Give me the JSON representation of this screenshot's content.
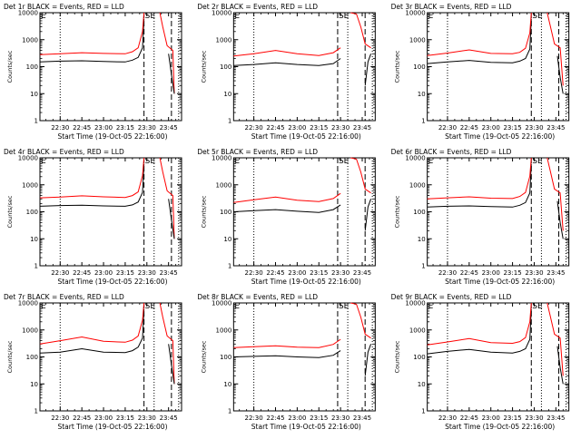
{
  "figure": {
    "xlabel": "Start Time (19-Oct-05 22:16:00)",
    "ylabel": "Counts/sec",
    "x_ticks": [
      "22:30",
      "22:45",
      "23:00",
      "23:15",
      "23:30",
      "23:45"
    ],
    "y_ticks": [
      "1",
      "10",
      "100",
      "1000",
      "10000"
    ],
    "colors": {
      "events": "#000000",
      "lld": "#ff0000",
      "markers": "#000000"
    },
    "flags": [
      "E",
      "SE"
    ]
  },
  "chart_data": [
    {
      "type": "line",
      "title": "Det 1r BLACK = Events, RED = LLD",
      "xlabel": "Start Time (19-Oct-05 22:16:00)",
      "ylabel": "Counts/sec",
      "x_ticks": [
        "22:30",
        "22:45",
        "23:00",
        "23:15",
        "23:30",
        "23:45"
      ],
      "yscale": "log",
      "ylim": [
        1,
        10000
      ],
      "xlim": [
        "22:16",
        "23:54"
      ],
      "series": [
        {
          "x": [
            "22:16",
            "22:30",
            "22:45",
            "23:00",
            "23:15",
            "23:20",
            "23:24",
            "23:27",
            "23:28"
          ],
          "values": [
            150,
            160,
            165,
            155,
            150,
            175,
            220,
            500,
            6000
          ]
        },
        {
          "x": [
            "22:16",
            "22:30",
            "22:45",
            "23:00",
            "23:15",
            "23:20",
            "23:24",
            "23:27",
            "23:28"
          ],
          "values": [
            280,
            300,
            330,
            310,
            300,
            360,
            500,
            2000,
            10000
          ]
        },
        {
          "x": [
            "23:39",
            "23:41",
            "23:44",
            "23:48",
            "23:49"
          ],
          "values": [
            10000,
            3000,
            600,
            400,
            10
          ]
        },
        {
          "x": [
            "23:45",
            "23:47",
            "23:49"
          ],
          "values": [
            300,
            50,
            10
          ]
        }
      ],
      "vlines_dotted": [
        "22:30",
        "23:35",
        "23:52"
      ],
      "vlines_dashed": [
        "23:28",
        "23:47"
      ],
      "annotations": [
        "E",
        "SE"
      ]
    },
    {
      "type": "line",
      "title": "Det 2r BLACK = Events, RED = LLD",
      "xlabel": "Start Time (19-Oct-05 22:16:00)",
      "ylabel": "Counts/sec",
      "x_ticks": [
        "22:30",
        "22:45",
        "23:00",
        "23:15",
        "23:30",
        "23:45"
      ],
      "yscale": "log",
      "ylim": [
        1,
        10000
      ],
      "xlim": [
        "22:16",
        "23:54"
      ],
      "series": [
        {
          "x": [
            "22:16",
            "22:30",
            "22:45",
            "23:00",
            "23:15",
            "23:25",
            "23:30"
          ],
          "values": [
            110,
            120,
            140,
            120,
            110,
            130,
            200
          ]
        },
        {
          "x": [
            "22:16",
            "22:30",
            "22:45",
            "23:00",
            "23:15",
            "23:25",
            "23:30"
          ],
          "values": [
            250,
            300,
            400,
            300,
            260,
            330,
            500
          ]
        },
        {
          "x": [
            "23:37",
            "23:41",
            "23:44",
            "23:47",
            "23:51"
          ],
          "values": [
            10000,
            9000,
            3000,
            700,
            500
          ]
        },
        {
          "x": [
            "23:47",
            "23:49",
            "23:51"
          ],
          "values": [
            20,
            150,
            300
          ]
        }
      ],
      "vlines_dotted": [
        "22:30",
        "23:35",
        "23:52"
      ],
      "vlines_dashed": [
        "23:28",
        "23:47"
      ],
      "annotations": [
        "E",
        "SE"
      ]
    },
    {
      "type": "line",
      "title": "Det 3r BLACK = Events, RED = LLD",
      "xlabel": "Start Time (19-Oct-05 22:16:00)",
      "ylabel": "Counts/sec",
      "x_ticks": [
        "22:30",
        "22:45",
        "23:00",
        "23:15",
        "23:30",
        "23:45"
      ],
      "yscale": "log",
      "ylim": [
        1,
        10000
      ],
      "xlim": [
        "22:16",
        "23:54"
      ],
      "series": [
        {
          "x": [
            "22:16",
            "22:30",
            "22:45",
            "23:00",
            "23:15",
            "23:20",
            "23:24",
            "23:27",
            "23:28"
          ],
          "values": [
            130,
            150,
            170,
            145,
            140,
            160,
            200,
            450,
            6000
          ]
        },
        {
          "x": [
            "22:16",
            "22:30",
            "22:45",
            "23:00",
            "23:15",
            "23:20",
            "23:24",
            "23:27",
            "23:28"
          ],
          "values": [
            260,
            320,
            420,
            310,
            300,
            340,
            480,
            1800,
            10000
          ]
        },
        {
          "x": [
            "23:39",
            "23:41",
            "23:44",
            "23:48",
            "23:50"
          ],
          "values": [
            10000,
            3500,
            700,
            500,
            20
          ]
        },
        {
          "x": [
            "23:46",
            "23:48",
            "23:50"
          ],
          "values": [
            250,
            40,
            10
          ]
        }
      ],
      "vlines_dotted": [
        "22:30",
        "23:35",
        "23:52"
      ],
      "vlines_dashed": [
        "23:28",
        "23:47"
      ],
      "annotations": [
        "E",
        "SE"
      ]
    },
    {
      "type": "line",
      "title": "Det 4r BLACK = Events, RED = LLD",
      "xlabel": "Start Time (19-Oct-05 22:16:00)",
      "ylabel": "Counts/sec",
      "x_ticks": [
        "22:30",
        "22:45",
        "23:00",
        "23:15",
        "23:30",
        "23:45"
      ],
      "yscale": "log",
      "ylim": [
        1,
        10000
      ],
      "xlim": [
        "22:16",
        "23:54"
      ],
      "series": [
        {
          "x": [
            "22:16",
            "22:30",
            "22:45",
            "23:00",
            "23:15",
            "23:20",
            "23:24",
            "23:27",
            "23:28"
          ],
          "values": [
            160,
            170,
            175,
            165,
            160,
            180,
            230,
            520,
            6000
          ]
        },
        {
          "x": [
            "22:16",
            "22:30",
            "22:45",
            "23:00",
            "23:15",
            "23:20",
            "23:24",
            "23:27",
            "23:28"
          ],
          "values": [
            330,
            350,
            390,
            360,
            340,
            400,
            550,
            2200,
            10000
          ]
        },
        {
          "x": [
            "23:39",
            "23:41",
            "23:44",
            "23:48",
            "23:49"
          ],
          "values": [
            10000,
            3000,
            600,
            400,
            10
          ]
        },
        {
          "x": [
            "23:45",
            "23:47",
            "23:49"
          ],
          "values": [
            300,
            50,
            10
          ]
        }
      ],
      "vlines_dotted": [
        "22:30",
        "23:35",
        "23:52"
      ],
      "vlines_dashed": [
        "23:28",
        "23:47"
      ],
      "annotations": [
        "E",
        "SE"
      ]
    },
    {
      "type": "line",
      "title": "Det 5r BLACK = Events, RED = LLD",
      "xlabel": "Start Time (19-Oct-05 22:16:00)",
      "ylabel": "Counts/sec",
      "x_ticks": [
        "22:30",
        "22:45",
        "23:00",
        "23:15",
        "23:30",
        "23:45"
      ],
      "yscale": "log",
      "ylim": [
        1,
        10000
      ],
      "xlim": [
        "22:16",
        "23:54"
      ],
      "series": [
        {
          "x": [
            "22:16",
            "22:30",
            "22:45",
            "23:00",
            "23:15",
            "23:25",
            "23:30"
          ],
          "values": [
            100,
            110,
            120,
            105,
            95,
            120,
            180
          ]
        },
        {
          "x": [
            "22:16",
            "22:30",
            "22:45",
            "23:00",
            "23:15",
            "23:25",
            "23:30"
          ],
          "values": [
            220,
            280,
            350,
            270,
            240,
            310,
            480
          ]
        },
        {
          "x": [
            "23:37",
            "23:41",
            "23:44",
            "23:47",
            "23:51"
          ],
          "values": [
            10000,
            9000,
            3000,
            700,
            500
          ]
        },
        {
          "x": [
            "23:47",
            "23:49",
            "23:51"
          ],
          "values": [
            20,
            150,
            300
          ]
        }
      ],
      "vlines_dotted": [
        "22:30",
        "23:35",
        "23:52"
      ],
      "vlines_dashed": [
        "23:28",
        "23:47"
      ],
      "annotations": [
        "E",
        "SE"
      ]
    },
    {
      "type": "line",
      "title": "Det 6r BLACK = Events, RED = LLD",
      "xlabel": "Start Time (19-Oct-05 22:16:00)",
      "ylabel": "Counts/sec",
      "x_ticks": [
        "22:30",
        "22:45",
        "23:00",
        "23:15",
        "23:30",
        "23:45"
      ],
      "yscale": "log",
      "ylim": [
        1,
        10000
      ],
      "xlim": [
        "22:16",
        "23:54"
      ],
      "series": [
        {
          "x": [
            "22:16",
            "22:30",
            "22:45",
            "23:00",
            "23:15",
            "23:20",
            "23:24",
            "23:27",
            "23:28"
          ],
          "values": [
            150,
            160,
            165,
            155,
            150,
            175,
            220,
            500,
            6000
          ]
        },
        {
          "x": [
            "22:16",
            "22:30",
            "22:45",
            "23:00",
            "23:15",
            "23:20",
            "23:24",
            "23:27",
            "23:28"
          ],
          "values": [
            300,
            330,
            360,
            320,
            310,
            370,
            520,
            2100,
            10000
          ]
        },
        {
          "x": [
            "23:39",
            "23:41",
            "23:44",
            "23:48",
            "23:50"
          ],
          "values": [
            10000,
            3500,
            700,
            500,
            20
          ]
        },
        {
          "x": [
            "23:46",
            "23:48",
            "23:50"
          ],
          "values": [
            250,
            40,
            10
          ]
        }
      ],
      "vlines_dotted": [
        "22:30",
        "23:35",
        "23:52"
      ],
      "vlines_dashed": [
        "23:28",
        "23:47"
      ],
      "annotations": [
        "E",
        "SE"
      ]
    },
    {
      "type": "line",
      "title": "Det 7r BLACK = Events, RED = LLD",
      "xlabel": "Start Time (19-Oct-05 22:16:00)",
      "ylabel": "Counts/sec",
      "x_ticks": [
        "22:30",
        "22:45",
        "23:00",
        "23:15",
        "23:30",
        "23:45"
      ],
      "yscale": "log",
      "ylim": [
        1,
        10000
      ],
      "xlim": [
        "22:16",
        "23:54"
      ],
      "series": [
        {
          "x": [
            "22:16",
            "22:30",
            "22:45",
            "23:00",
            "23:15",
            "23:20",
            "23:24",
            "23:27",
            "23:28"
          ],
          "values": [
            140,
            150,
            200,
            150,
            145,
            170,
            230,
            500,
            6000
          ]
        },
        {
          "x": [
            "22:16",
            "22:30",
            "22:45",
            "23:00",
            "23:15",
            "23:20",
            "23:24",
            "23:27",
            "23:28"
          ],
          "values": [
            300,
            400,
            550,
            380,
            350,
            420,
            600,
            2300,
            10000
          ]
        },
        {
          "x": [
            "23:39",
            "23:41",
            "23:44",
            "23:48",
            "23:49"
          ],
          "values": [
            10000,
            3000,
            600,
            400,
            10
          ]
        },
        {
          "x": [
            "23:45",
            "23:47",
            "23:49"
          ],
          "values": [
            300,
            50,
            10
          ]
        }
      ],
      "vlines_dotted": [
        "22:30",
        "23:35",
        "23:52"
      ],
      "vlines_dashed": [
        "23:28",
        "23:47"
      ],
      "annotations": [
        "E",
        "SE"
      ]
    },
    {
      "type": "line",
      "title": "Det 8r BLACK = Events, RED = LLD",
      "xlabel": "Start Time (19-Oct-05 22:16:00)",
      "ylabel": "Counts/sec",
      "x_ticks": [
        "22:30",
        "22:45",
        "23:00",
        "23:15",
        "23:30",
        "23:45"
      ],
      "yscale": "log",
      "ylim": [
        1,
        10000
      ],
      "xlim": [
        "22:16",
        "23:54"
      ],
      "series": [
        {
          "x": [
            "22:16",
            "22:30",
            "22:45",
            "23:00",
            "23:15",
            "23:25",
            "23:30"
          ],
          "values": [
            100,
            105,
            110,
            100,
            95,
            115,
            170
          ]
        },
        {
          "x": [
            "22:16",
            "22:30",
            "22:45",
            "23:00",
            "23:15",
            "23:25",
            "23:30"
          ],
          "values": [
            220,
            240,
            260,
            230,
            220,
            290,
            450
          ]
        },
        {
          "x": [
            "23:37",
            "23:41",
            "23:44",
            "23:47",
            "23:51"
          ],
          "values": [
            10000,
            9000,
            3000,
            700,
            500
          ]
        },
        {
          "x": [
            "23:47",
            "23:49",
            "23:51"
          ],
          "values": [
            20,
            150,
            300
          ]
        }
      ],
      "vlines_dotted": [
        "22:30",
        "23:35",
        "23:52"
      ],
      "vlines_dashed": [
        "23:28",
        "23:47"
      ],
      "annotations": [
        "E",
        "SE"
      ]
    },
    {
      "type": "line",
      "title": "Det 9r BLACK = Events, RED = LLD",
      "xlabel": "Start Time (19-Oct-05 22:16:00)",
      "ylabel": "Counts/sec",
      "x_ticks": [
        "22:30",
        "22:45",
        "23:00",
        "23:15",
        "23:30",
        "23:45"
      ],
      "yscale": "log",
      "ylim": [
        1,
        10000
      ],
      "xlim": [
        "22:16",
        "23:54"
      ],
      "series": [
        {
          "x": [
            "22:16",
            "22:30",
            "22:45",
            "23:00",
            "23:15",
            "23:20",
            "23:24",
            "23:27",
            "23:28"
          ],
          "values": [
            130,
            160,
            190,
            150,
            140,
            160,
            200,
            450,
            6000
          ]
        },
        {
          "x": [
            "22:16",
            "22:30",
            "22:45",
            "23:00",
            "23:15",
            "23:20",
            "23:24",
            "23:27",
            "23:28"
          ],
          "values": [
            280,
            360,
            480,
            340,
            320,
            370,
            520,
            2000,
            10000
          ]
        },
        {
          "x": [
            "23:39",
            "23:41",
            "23:44",
            "23:48",
            "23:50"
          ],
          "values": [
            10000,
            3500,
            700,
            500,
            20
          ]
        },
        {
          "x": [
            "23:46",
            "23:48",
            "23:50"
          ],
          "values": [
            250,
            40,
            10
          ]
        }
      ],
      "vlines_dotted": [
        "22:30",
        "23:35",
        "23:52"
      ],
      "vlines_dashed": [
        "23:28",
        "23:47"
      ],
      "annotations": [
        "E",
        "SE"
      ]
    }
  ]
}
